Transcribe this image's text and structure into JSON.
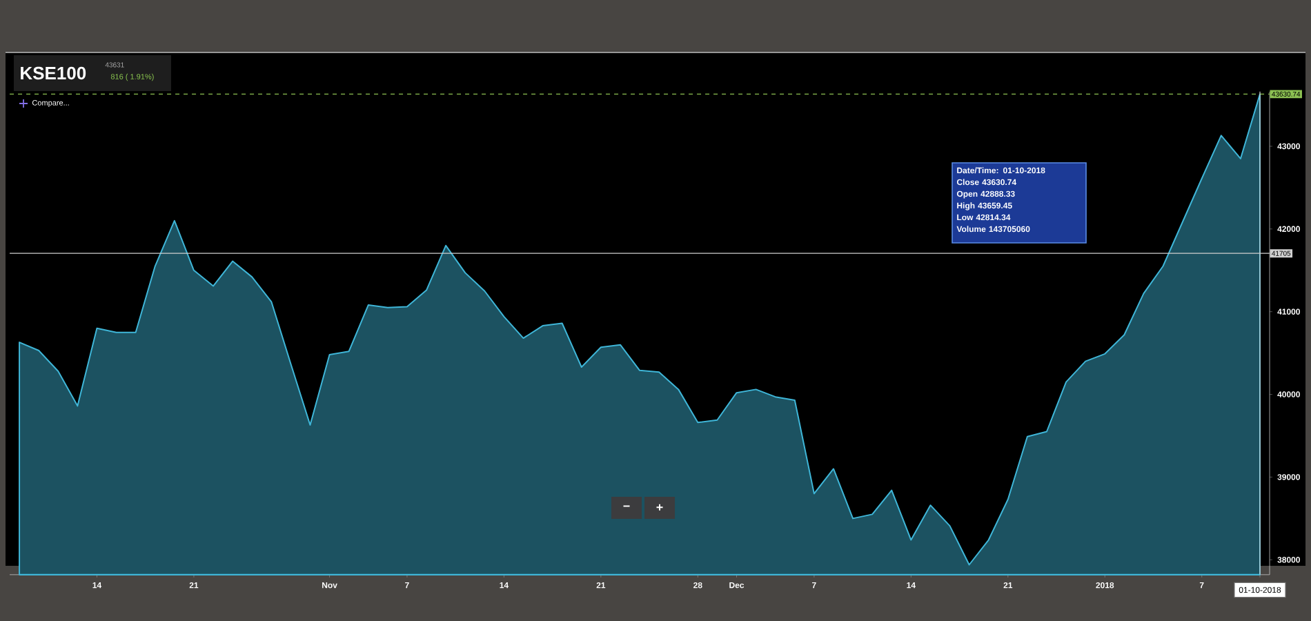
{
  "chart_data": {
    "type": "area",
    "title": "KSE100",
    "subtitle": "43631",
    "categories": [
      null,
      null,
      null,
      null,
      "14",
      null,
      null,
      null,
      null,
      "21",
      null,
      null,
      null,
      null,
      null,
      null,
      "Nov",
      null,
      null,
      null,
      "7",
      null,
      null,
      null,
      null,
      "14",
      null,
      null,
      null,
      null,
      "21",
      null,
      null,
      null,
      null,
      "28",
      null,
      "Dec",
      null,
      null,
      null,
      "7",
      null,
      null,
      null,
      null,
      "14",
      null,
      null,
      null,
      null,
      "21",
      null,
      null,
      null,
      null,
      "2018",
      null,
      null,
      null,
      null,
      "7",
      null,
      null,
      "01-10-2018"
    ],
    "series": [
      {
        "color": "#3fb6d8",
        "values": [
          40630,
          40530,
          40280,
          39860,
          40800,
          40750,
          40750,
          41550,
          42100,
          41500,
          41310,
          41610,
          41420,
          41120,
          40370,
          39630,
          40480,
          40520,
          41080,
          41050,
          41060,
          41260,
          41800,
          41470,
          41250,
          40940,
          40680,
          40830,
          40860,
          40330,
          40570,
          40600,
          40290,
          40270,
          40060,
          39660,
          39690,
          40020,
          40060,
          39970,
          39930,
          38800,
          39100,
          38500,
          38550,
          38840,
          38240,
          38660,
          38410,
          37940,
          38240,
          38730,
          39490,
          39550,
          40150,
          40400,
          40490,
          40720,
          41220,
          41550,
          42080,
          42610,
          43130,
          42850,
          43630.74
        ]
      }
    ],
    "ylim": [
      37820,
      43660
    ],
    "yticks": [
      38000,
      39000,
      40000,
      41000,
      42000,
      43000
    ],
    "ref_lines": [
      {
        "axis": "y",
        "value": 41705,
        "label": "41705",
        "color": "#d0d0d0"
      },
      {
        "axis": "y",
        "value": 43630.74,
        "label": "43630.74",
        "color": "#8cc152",
        "line_style": "dashed"
      },
      {
        "axis": "x",
        "value": "01-10-2018",
        "color": "#d0d0d0"
      }
    ],
    "annotations": [
      "816 ( 1.91%)",
      "Compare...",
      "Date/Time: 01-10-2018",
      "Close 43630.74",
      "Open 42888.33",
      "High 43659.45",
      "Low 42814.34",
      "Volume 143705060",
      "−",
      "+"
    ],
    "grid": false,
    "marker": "none"
  }
}
